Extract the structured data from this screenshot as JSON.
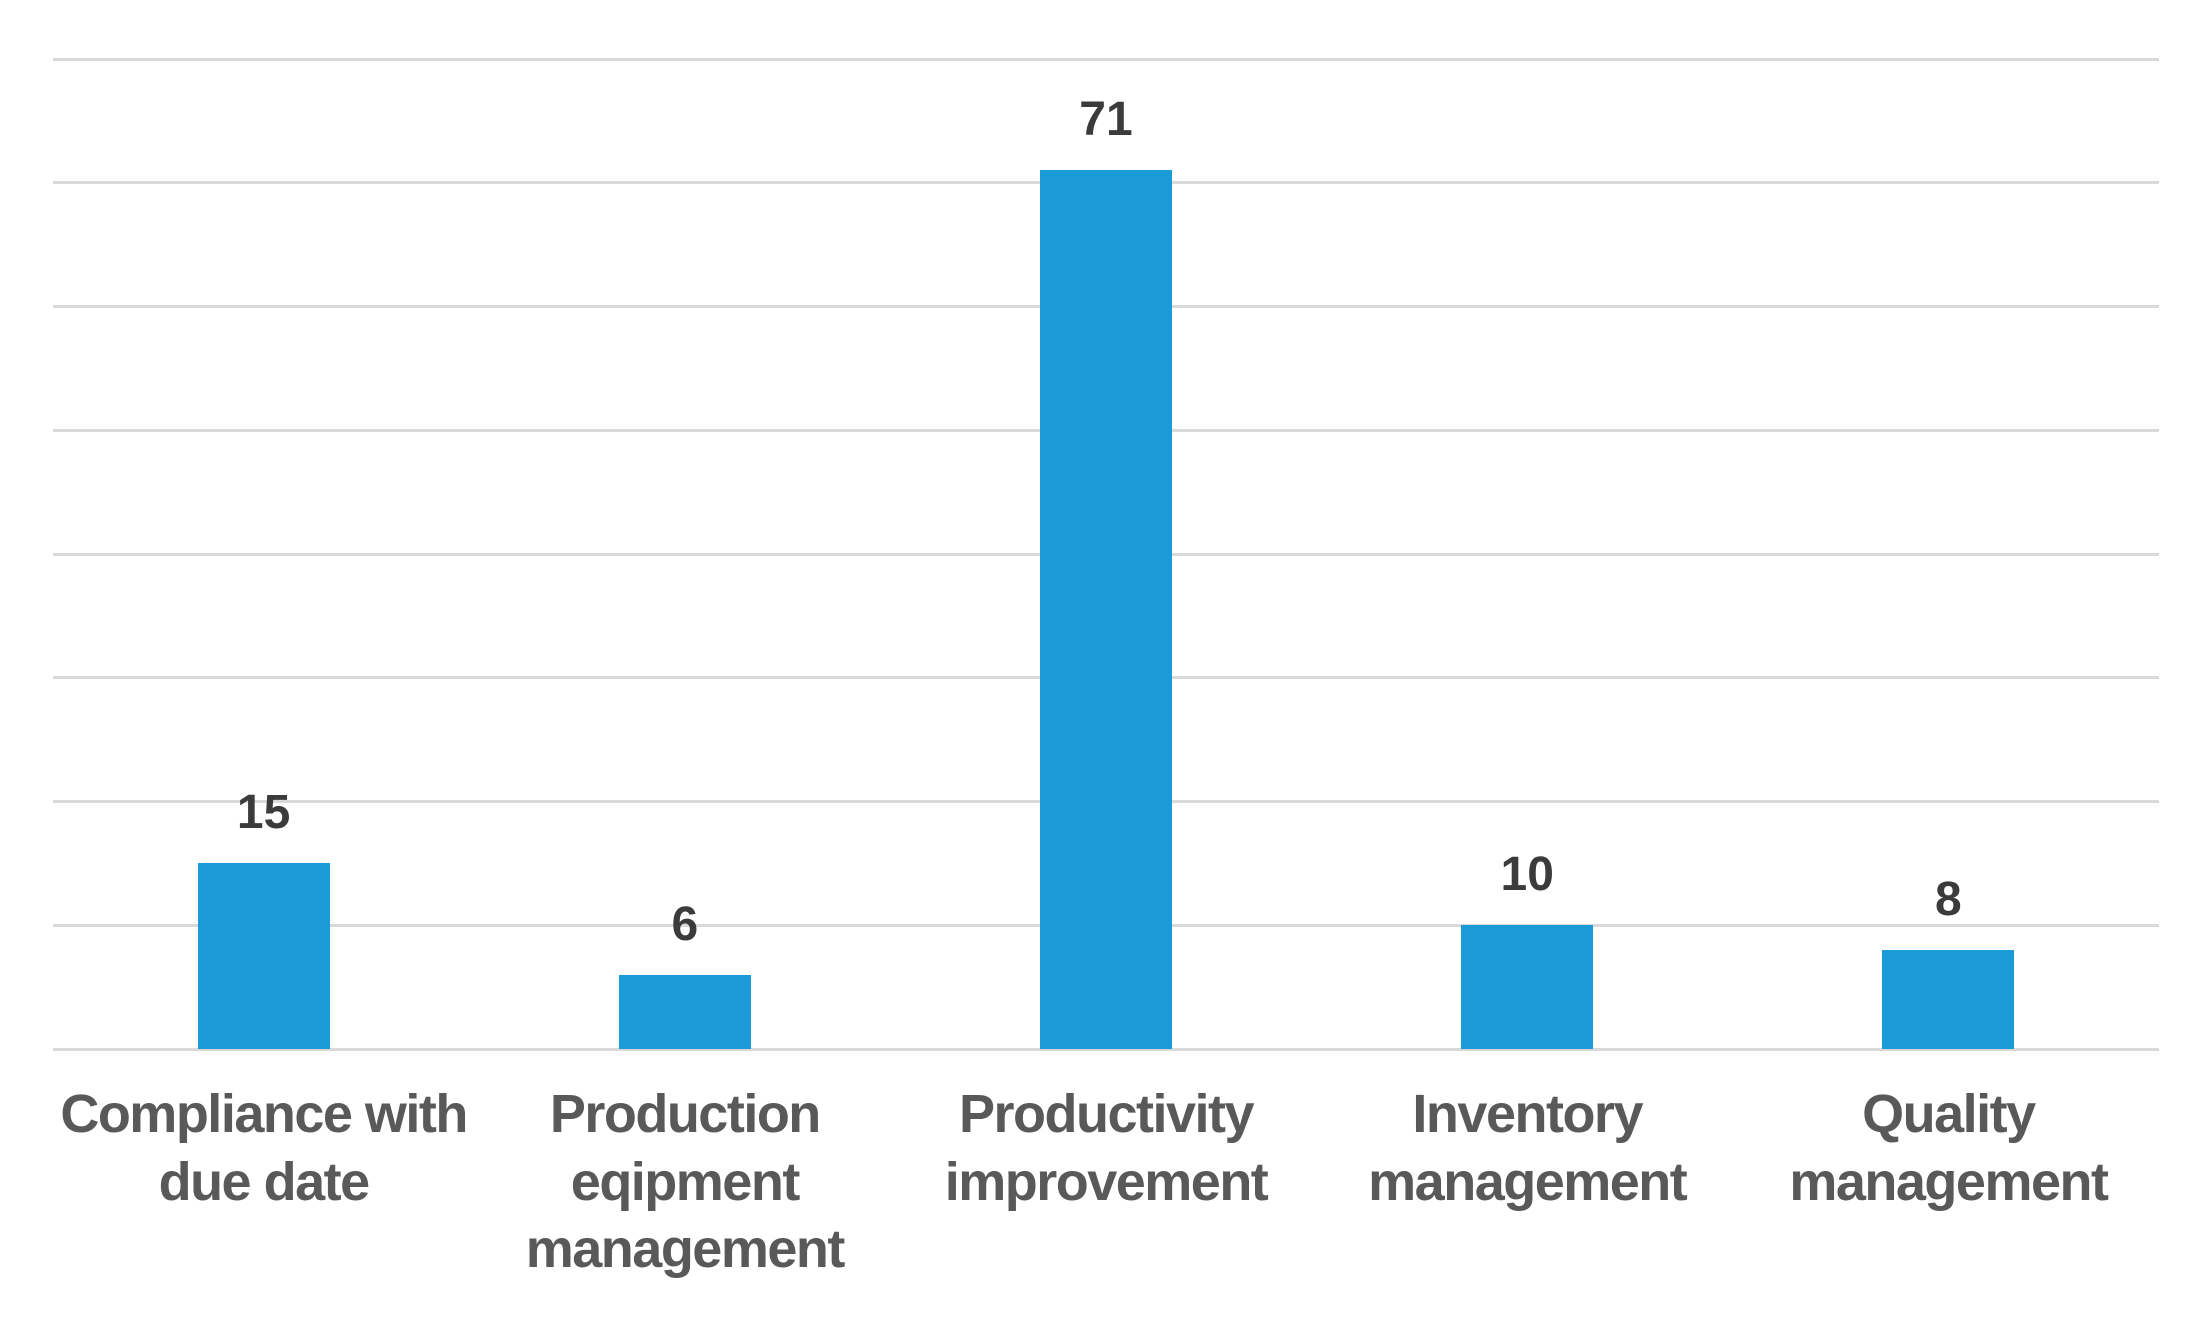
{
  "chart_data": {
    "type": "bar",
    "title": "",
    "xlabel": "",
    "ylabel": "",
    "categories": [
      "Compliance with due date",
      "Production eqipment management",
      "Productivity improvement",
      "Inventory management",
      "Quality management"
    ],
    "values": [
      15,
      6,
      71,
      10,
      8
    ],
    "data_labels": [
      "15",
      "6",
      "71",
      "10",
      "8"
    ],
    "ylim": [
      0,
      80
    ],
    "gridline_step": 10,
    "grid": "horizontal",
    "legend_position": "none",
    "y_axis_tick_labels_visible": false,
    "colors": {
      "bar": "#1a9ad7",
      "value_label": "#3b3b3b",
      "category_label": "#595959",
      "gridline": "#d9d9d9",
      "background": "#ffffff"
    }
  }
}
